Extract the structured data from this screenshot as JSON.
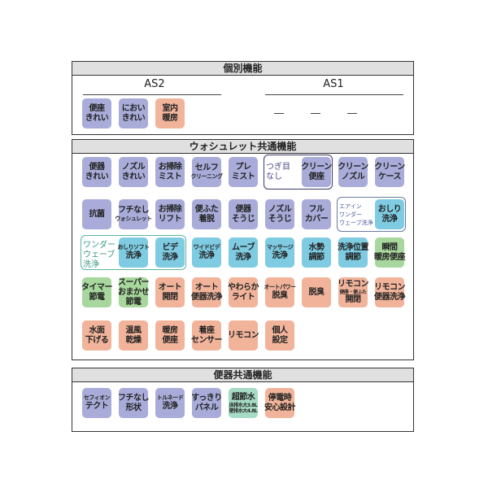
{
  "colors": {
    "purple": "#a9acd9",
    "blue": "#7ecbe2",
    "green": "#a7d79c",
    "salmon": "#f1b49b",
    "mint": "#a6dcc6"
  },
  "individual": {
    "title": "個別機能",
    "as2": "AS2",
    "as1": "AS1",
    "as1_values": [
      "—",
      "—",
      "—"
    ],
    "tiles": [
      {
        "lines": [
          "便座",
          "きれい"
        ],
        "color": "purple"
      },
      {
        "lines": [
          "におい",
          "きれい"
        ],
        "color": "purple"
      },
      {
        "lines": [
          "室内",
          "暖房"
        ],
        "color": "salmon"
      }
    ]
  },
  "washlet": {
    "title": "ウォシュレット共通機能",
    "rows": [
      [
        {
          "lines": [
            "便器",
            "きれい"
          ],
          "color": "purple"
        },
        {
          "lines": [
            "ノズル",
            "きれい"
          ],
          "color": "purple"
        },
        {
          "lines": [
            "お掃除",
            "ミスト"
          ],
          "color": "purple"
        },
        {
          "lines": [
            "セルフ",
            "クリーニング"
          ],
          "color": "purple"
        },
        {
          "lines": [
            "プレ",
            "ミスト"
          ],
          "color": "purple"
        },
        {
          "group": "seamless",
          "label": [
            "つぎ目",
            "なし"
          ],
          "tiles": [
            {
              "lines": [
                "クリーン",
                "便座"
              ],
              "color": "purple"
            }
          ]
        },
        {
          "lines": [
            "クリーン",
            "ノズル"
          ],
          "color": "purple"
        },
        {
          "lines": [
            "クリーン",
            "ケース"
          ],
          "color": "purple"
        }
      ],
      [
        {
          "lines": [
            "抗菌"
          ],
          "color": "purple"
        },
        {
          "lines": [
            "フチなし",
            "ウォシュレット"
          ],
          "color": "purple"
        },
        {
          "lines": [
            "お掃除",
            "リフト"
          ],
          "color": "purple"
        },
        {
          "lines": [
            "便ふた",
            "着脱"
          ],
          "color": "purple"
        },
        {
          "lines": [
            "便器",
            "そうじ"
          ],
          "color": "purple"
        },
        {
          "lines": [
            "ノズル",
            "そうじ"
          ],
          "color": "purple"
        },
        {
          "lines": [
            "フル",
            "カバー"
          ],
          "color": "purple"
        },
        {
          "group": "airin",
          "label": [
            "エアイン",
            "ワンダー",
            "ウェーブ洗浄"
          ],
          "tiles": [
            {
              "lines": [
                "おしり",
                "洗浄"
              ],
              "color": "blue"
            }
          ]
        }
      ],
      [
        {
          "group": "wonder",
          "label": [
            "ワンダー",
            "ウェーブ",
            "洗浄"
          ],
          "tiles": [
            {
              "lines": [
                "おしりソフト",
                "洗浄"
              ],
              "color": "blue"
            },
            {
              "lines": [
                "ビデ",
                "洗浄"
              ],
              "color": "blue"
            }
          ]
        },
        {
          "lines": [
            "ワイドビデ",
            "洗浄"
          ],
          "color": "blue"
        },
        {
          "lines": [
            "ムーブ",
            "洗浄"
          ],
          "color": "blue"
        },
        {
          "lines": [
            "マッサージ",
            "洗浄"
          ],
          "color": "blue"
        },
        {
          "lines": [
            "水勢",
            "調節"
          ],
          "color": "blue"
        },
        {
          "lines": [
            "洗浄位置",
            "調節"
          ],
          "color": "blue"
        },
        {
          "lines": [
            "瞬間",
            "暖房便座"
          ],
          "color": "green"
        }
      ],
      [
        {
          "lines": [
            "タイマー",
            "節電"
          ],
          "color": "green"
        },
        {
          "lines": [
            "スーパー",
            "おまかせ",
            "節電"
          ],
          "color": "green"
        },
        {
          "lines": [
            "オート",
            "開閉"
          ],
          "color": "salmon"
        },
        {
          "lines": [
            "オート",
            "便器洗浄"
          ],
          "color": "salmon"
        },
        {
          "lines": [
            "やわらか",
            "ライト"
          ],
          "color": "salmon"
        },
        {
          "lines": [
            "オートパワー",
            "脱臭"
          ],
          "color": "salmon"
        },
        {
          "lines": [
            "脱臭"
          ],
          "color": "salmon"
        },
        {
          "lines": [
            "リモコン",
            "便座・便ふた",
            "開閉"
          ],
          "color": "salmon"
        },
        {
          "lines": [
            "リモコン",
            "便器洗浄"
          ],
          "color": "salmon"
        }
      ],
      [
        {
          "lines": [
            "水面",
            "下げる"
          ],
          "color": "salmon"
        },
        {
          "lines": [
            "温風",
            "乾燥"
          ],
          "color": "salmon"
        },
        {
          "lines": [
            "暖房",
            "便座"
          ],
          "color": "salmon"
        },
        {
          "lines": [
            "着座",
            "センサー"
          ],
          "color": "salmon"
        },
        {
          "lines": [
            "リモコン"
          ],
          "color": "salmon"
        },
        {
          "lines": [
            "個人",
            "設定"
          ],
          "color": "salmon"
        }
      ]
    ]
  },
  "toilet": {
    "title": "便器共通機能",
    "tiles": [
      {
        "lines": [
          "セフィオン",
          "テクト"
        ],
        "color": "purple"
      },
      {
        "lines": [
          "フチなし",
          "形状"
        ],
        "color": "purple"
      },
      {
        "lines": [
          "トルネード",
          "洗浄"
        ],
        "color": "purple"
      },
      {
        "lines": [
          "すっきり",
          "パネル"
        ],
        "color": "purple"
      },
      {
        "lines": [
          "超節水",
          "床排水大3.8L",
          "壁排水大4.8L"
        ],
        "color": "mint"
      },
      {
        "lines": [
          "停電時",
          "安心設計"
        ],
        "color": "salmon"
      }
    ]
  }
}
